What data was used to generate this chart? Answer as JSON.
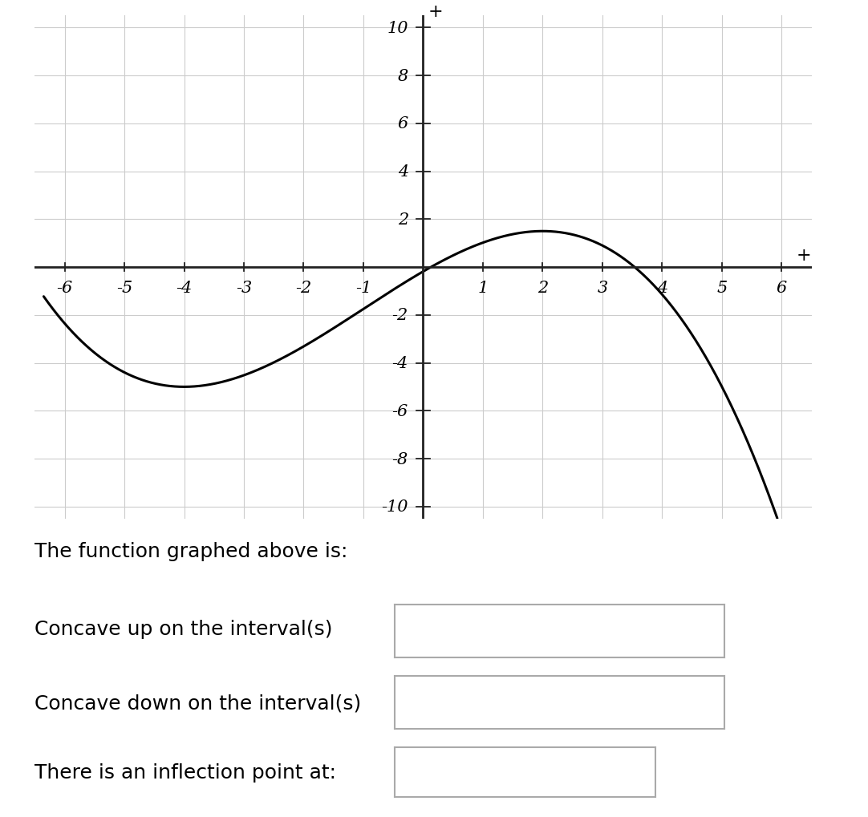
{
  "xlim": [
    -6.5,
    6.5
  ],
  "ylim": [
    -10.5,
    10.5
  ],
  "xticks": [
    -6,
    -5,
    -4,
    -3,
    -2,
    -1,
    1,
    2,
    3,
    4,
    5,
    6
  ],
  "yticks": [
    -10,
    -8,
    -6,
    -4,
    -2,
    2,
    4,
    6,
    8,
    10
  ],
  "grid_color": "#cccccc",
  "axis_color": "#222222",
  "curve_color": "#000000",
  "curve_lw": 2.2,
  "background_color": "#ffffff",
  "text_line1": "The function graphed above is:",
  "text_line2": "Concave up on the interval(s)",
  "text_line3": "Concave down on the interval(s)",
  "text_line4": "There is an inflection point at:",
  "text_fontsize": 18,
  "tick_fontsize": 15
}
